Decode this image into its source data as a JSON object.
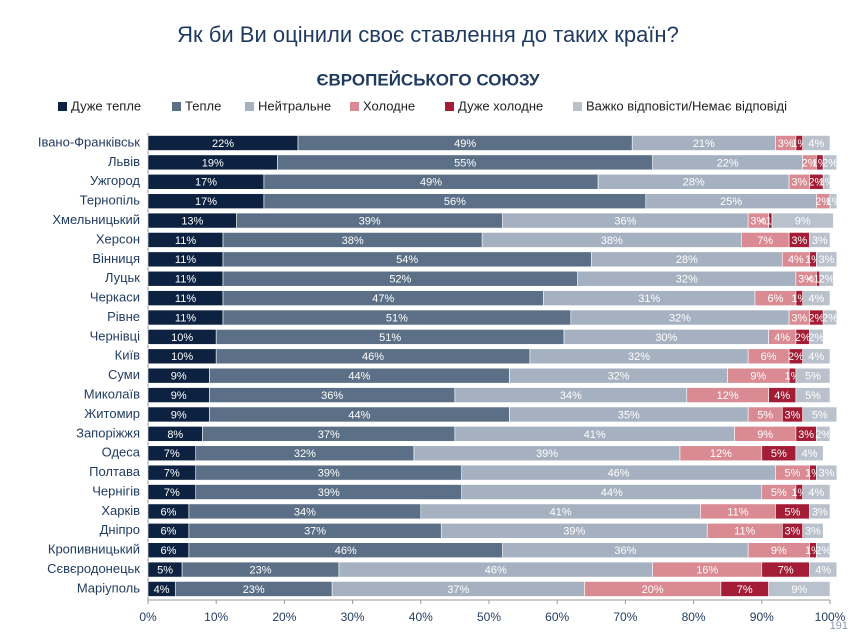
{
  "chart_data": {
    "type": "stacked-bar-horizontal",
    "title": "Як би Ви оцінили своє ставлення до таких країн?",
    "subtitle": "ЄВРОПЕЙСЬКОГО СОЮЗУ",
    "categories": [
      "Івано-Франківськ",
      "Львів",
      "Ужгород",
      "Тернопіль",
      "Хмельницький",
      "Херсон",
      "Вінниця",
      "Луцьк",
      "Черкаси",
      "Рівне",
      "Чернівці",
      "Київ",
      "Суми",
      "Миколаїв",
      "Житомир",
      "Запоріжжя",
      "Одеса",
      "Полтава",
      "Чернігів",
      "Харків",
      "Дніпро",
      "Кропивницький",
      "Сєвєродонецьк",
      "Маріуполь"
    ],
    "series": [
      {
        "name": "Дуже тепле",
        "color": "#0d2240",
        "values": [
          22,
          19,
          17,
          17,
          13,
          11,
          11,
          11,
          11,
          11,
          10,
          10,
          9,
          9,
          9,
          8,
          7,
          7,
          7,
          6,
          6,
          6,
          5,
          4
        ],
        "value_labels": [
          "22%",
          "19%",
          "17%",
          "17%",
          "13%",
          "11%",
          "11%",
          "11%",
          "11%",
          "11%",
          "10%",
          "10%",
          "9%",
          "9%",
          "9%",
          "8%",
          "7%",
          "7%",
          "7%",
          "6%",
          "6%",
          "6%",
          "5%",
          "4%"
        ]
      },
      {
        "name": "Тепле",
        "color": "#5b6f86",
        "values": [
          49,
          55,
          49,
          56,
          39,
          38,
          54,
          52,
          47,
          51,
          51,
          46,
          44,
          36,
          44,
          37,
          32,
          39,
          39,
          34,
          37,
          46,
          23,
          23
        ],
        "value_labels": [
          "49%",
          "55%",
          "49%",
          "56%",
          "39%",
          "38%",
          "54%",
          "52%",
          "47%",
          "51%",
          "51%",
          "46%",
          "44%",
          "36%",
          "44%",
          "37%",
          "32%",
          "39%",
          "39%",
          "34%",
          "37%",
          "46%",
          "23%",
          "23%"
        ]
      },
      {
        "name": "Нейтральне",
        "color": "#a5b1c0",
        "values": [
          21,
          22,
          28,
          25,
          36,
          38,
          28,
          32,
          31,
          32,
          30,
          32,
          32,
          34,
          35,
          41,
          39,
          46,
          44,
          41,
          39,
          36,
          46,
          37
        ],
        "value_labels": [
          "21%",
          "22%",
          "28%",
          "25%",
          "36%",
          "38%",
          "28%",
          "32%",
          "31%",
          "32%",
          "30%",
          "32%",
          "32%",
          "34%",
          "35%",
          "41%",
          "39%",
          "46%",
          "44%",
          "41%",
          "39%",
          "36%",
          "46%",
          "37%"
        ]
      },
      {
        "name": "Холодне",
        "color": "#d98a92",
        "values": [
          3,
          2,
          3,
          2,
          3,
          7,
          4,
          3,
          6,
          3,
          4,
          6,
          9,
          12,
          5,
          9,
          12,
          5,
          5,
          11,
          11,
          9,
          16,
          20
        ],
        "value_labels": [
          "3%",
          "2%",
          "3%",
          "2%",
          "3%",
          "7%",
          "4%",
          "3%",
          "6%",
          "3%",
          "4%",
          "6%",
          "9%",
          "12%",
          "5%",
          "9%",
          "12%",
          "5%",
          "5%",
          "11%",
          "11%",
          "9%",
          "16%",
          "20%"
        ]
      },
      {
        "name": "Дуже холодне",
        "color": "#a31d36",
        "values": [
          1,
          1,
          2,
          0,
          0.5,
          3,
          1,
          0.5,
          1,
          2,
          2,
          2,
          1,
          4,
          3,
          3,
          5,
          1,
          1,
          5,
          3,
          1,
          7,
          7
        ],
        "value_labels": [
          "1%",
          "1%",
          "2%",
          null,
          "<1%",
          "3%",
          "1%",
          "<1%",
          "1%",
          "2%",
          "2%",
          "2%",
          "1%",
          "4%",
          "3%",
          "3%",
          "5%",
          "1%",
          "1%",
          "5%",
          "3%",
          "1%",
          "7%",
          "7%"
        ]
      },
      {
        "name": "Важко відповісти/Немає відповіді",
        "color": "#b9c1cc",
        "values": [
          4,
          2,
          1,
          1,
          9,
          3,
          3,
          2,
          4,
          2,
          2,
          4,
          5,
          5,
          5,
          2,
          4,
          3,
          4,
          3,
          3,
          2,
          4,
          9
        ],
        "value_labels": [
          "4%",
          "2%",
          "1%",
          "1%",
          "9%",
          "3%",
          "3%",
          "2%",
          "4%",
          "2%",
          "2%",
          "4%",
          "5%",
          "5%",
          "5%",
          "2%",
          "4%",
          "3%",
          "4%",
          "3%",
          "3%",
          "2%",
          "4%",
          "9%"
        ]
      }
    ],
    "xlim": [
      0,
      100
    ],
    "xticks": [
      {
        "value": 0,
        "label": "0%"
      },
      {
        "value": 10,
        "label": "10%"
      },
      {
        "value": 20,
        "label": "20%"
      },
      {
        "value": 30,
        "label": "30%"
      },
      {
        "value": 40,
        "label": "40%"
      },
      {
        "value": 50,
        "label": "50%"
      },
      {
        "value": 60,
        "label": "60%"
      },
      {
        "value": 70,
        "label": "70%"
      },
      {
        "value": 80,
        "label": "80%"
      },
      {
        "value": 90,
        "label": "90%"
      },
      {
        "value": 100,
        "label": "100%"
      }
    ],
    "legend": "top"
  },
  "page_number": "191"
}
